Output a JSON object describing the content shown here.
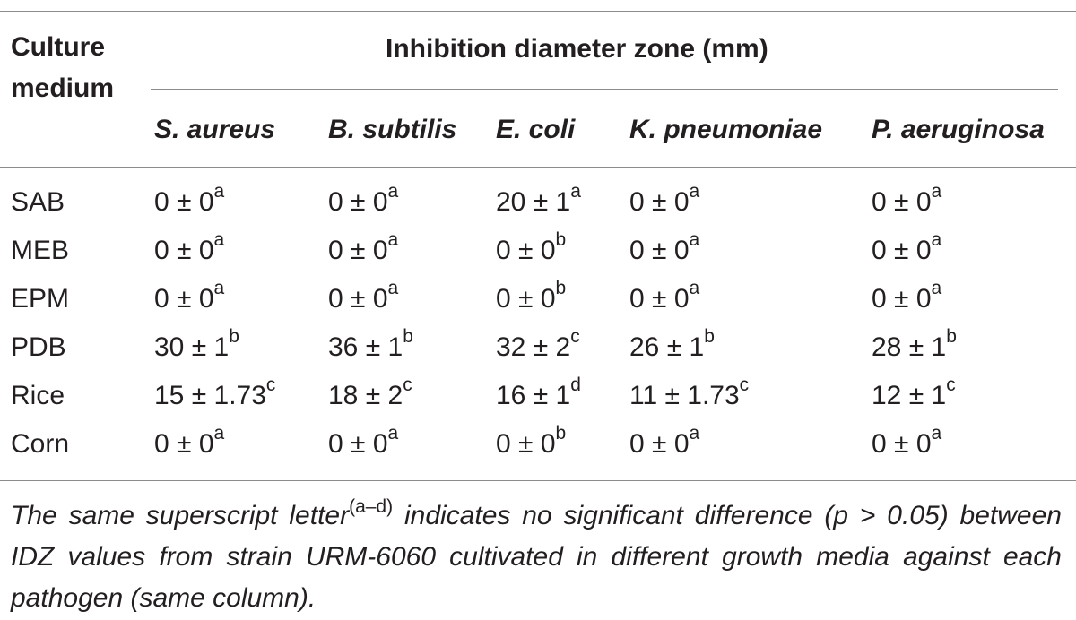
{
  "table": {
    "stub_header": "Culture medium",
    "spanning_header": "Inhibition diameter zone (mm)",
    "columns": [
      "S. aureus",
      "B. subtilis",
      "E. coli",
      "K. pneumoniae",
      "P. aeruginosa"
    ],
    "rows": [
      {
        "medium": "SAB",
        "cells": [
          {
            "value": "0 ± 0",
            "sup": "a"
          },
          {
            "value": "0 ± 0",
            "sup": "a"
          },
          {
            "value": "20 ± 1",
            "sup": "a"
          },
          {
            "value": "0 ± 0",
            "sup": "a"
          },
          {
            "value": "0 ± 0",
            "sup": "a"
          }
        ]
      },
      {
        "medium": "MEB",
        "cells": [
          {
            "value": "0 ± 0",
            "sup": "a"
          },
          {
            "value": "0 ± 0",
            "sup": "a"
          },
          {
            "value": "0 ± 0",
            "sup": "b"
          },
          {
            "value": "0 ± 0",
            "sup": "a"
          },
          {
            "value": "0 ± 0",
            "sup": "a"
          }
        ]
      },
      {
        "medium": "EPM",
        "cells": [
          {
            "value": "0 ± 0",
            "sup": "a"
          },
          {
            "value": "0 ± 0",
            "sup": "a"
          },
          {
            "value": "0 ± 0",
            "sup": "b"
          },
          {
            "value": "0 ± 0",
            "sup": "a"
          },
          {
            "value": "0 ± 0",
            "sup": "a"
          }
        ]
      },
      {
        "medium": "PDB",
        "cells": [
          {
            "value": "30 ± 1",
            "sup": "b"
          },
          {
            "value": "36 ± 1",
            "sup": "b"
          },
          {
            "value": "32 ± 2",
            "sup": "c"
          },
          {
            "value": "26 ± 1",
            "sup": "b"
          },
          {
            "value": "28 ± 1",
            "sup": "b"
          }
        ]
      },
      {
        "medium": "Rice",
        "cells": [
          {
            "value": "15 ± 1.73",
            "sup": "c"
          },
          {
            "value": "18 ± 2",
            "sup": "c"
          },
          {
            "value": "16 ± 1",
            "sup": "d"
          },
          {
            "value": "11 ± 1.73",
            "sup": "c"
          },
          {
            "value": "12 ± 1",
            "sup": "c"
          }
        ]
      },
      {
        "medium": "Corn",
        "cells": [
          {
            "value": "0 ± 0",
            "sup": "a"
          },
          {
            "value": "0 ± 0",
            "sup": "a"
          },
          {
            "value": "0 ± 0",
            "sup": "b"
          },
          {
            "value": "0 ± 0",
            "sup": "a"
          },
          {
            "value": "0 ± 0",
            "sup": "a"
          }
        ]
      }
    ]
  },
  "footnote": {
    "before": "The same superscript letter",
    "sup": "(a–d)",
    "after": " indicates no significant difference (p > 0.05) between IDZ values from strain URM-6060 cultivated in different growth media against each pathogen (same column)."
  }
}
